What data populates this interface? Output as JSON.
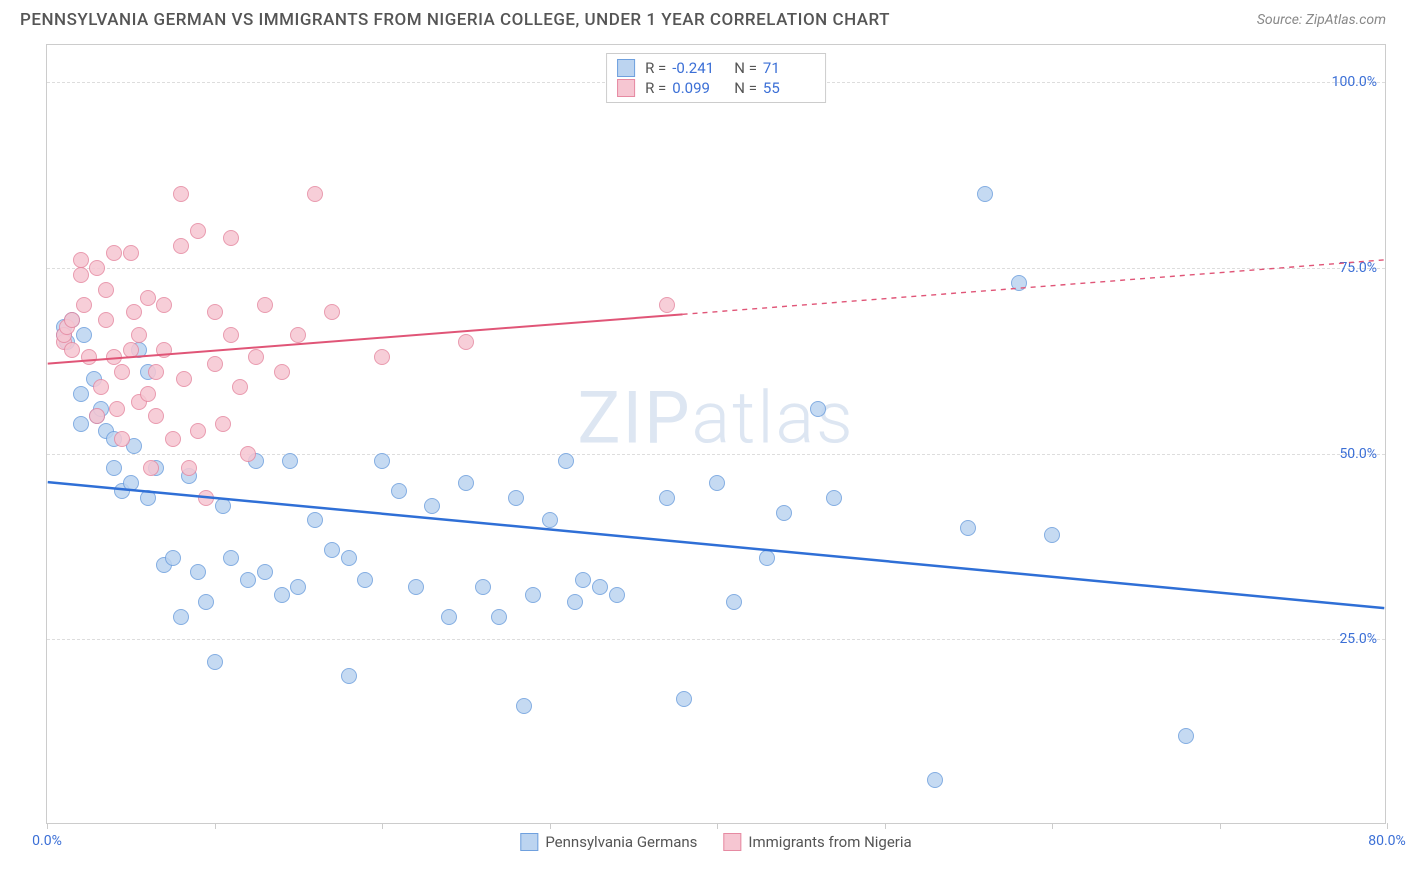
{
  "header": {
    "title": "PENNSYLVANIA GERMAN VS IMMIGRANTS FROM NIGERIA COLLEGE, UNDER 1 YEAR CORRELATION CHART",
    "source": "Source: ZipAtlas.com"
  },
  "chart": {
    "type": "scatter",
    "ylabel": "College, Under 1 year",
    "xlim": [
      0,
      80
    ],
    "ylim": [
      0,
      105
    ],
    "xticks": [
      0,
      10,
      20,
      30,
      40,
      50,
      60,
      70,
      80
    ],
    "xtick_labels_shown": {
      "0": "0.0%",
      "80": "80.0%"
    },
    "yticks": [
      25,
      50,
      75,
      100
    ],
    "ytick_labels": {
      "25": "25.0%",
      "50": "50.0%",
      "75": "75.0%",
      "100": "100.0%"
    },
    "background_color": "#ffffff",
    "grid_color": "#dddddd",
    "border_color": "#cccccc",
    "watermark": "ZIPatlas",
    "series": [
      {
        "id": "blue",
        "label": "Pennsylvania Germans",
        "fill": "#bcd4f0",
        "stroke": "#6fa0de",
        "R": "-0.241",
        "N": "71",
        "trend": {
          "x1": 0,
          "y1": 46,
          "x2": 80,
          "y2": 29,
          "solid_to_x": 80,
          "color": "#2f6fd6",
          "width": 2.5
        },
        "points": [
          [
            1,
            67
          ],
          [
            1,
            66
          ],
          [
            1.2,
            65
          ],
          [
            1.5,
            68
          ],
          [
            2,
            58
          ],
          [
            2,
            54
          ],
          [
            2.2,
            66
          ],
          [
            3,
            55
          ],
          [
            3.5,
            53
          ],
          [
            4,
            52
          ],
          [
            4,
            48
          ],
          [
            4.5,
            45
          ],
          [
            5,
            46
          ],
          [
            5.2,
            51
          ],
          [
            5.5,
            64
          ],
          [
            6,
            61
          ],
          [
            6,
            44
          ],
          [
            6.5,
            48
          ],
          [
            7,
            35
          ],
          [
            7.5,
            36
          ],
          [
            8,
            28
          ],
          [
            8.5,
            47
          ],
          [
            9,
            34
          ],
          [
            9.5,
            30
          ],
          [
            10,
            22
          ],
          [
            10.5,
            43
          ],
          [
            11,
            36
          ],
          [
            12,
            33
          ],
          [
            12.5,
            49
          ],
          [
            13,
            34
          ],
          [
            14,
            31
          ],
          [
            14.5,
            49
          ],
          [
            15,
            32
          ],
          [
            16,
            41
          ],
          [
            17,
            37
          ],
          [
            18,
            36
          ],
          [
            18,
            20
          ],
          [
            19,
            33
          ],
          [
            20,
            49
          ],
          [
            21,
            45
          ],
          [
            22,
            32
          ],
          [
            23,
            43
          ],
          [
            24,
            28
          ],
          [
            25,
            46
          ],
          [
            26,
            32
          ],
          [
            27,
            28
          ],
          [
            28,
            44
          ],
          [
            28.5,
            16
          ],
          [
            29,
            31
          ],
          [
            30,
            41
          ],
          [
            31,
            49
          ],
          [
            31.5,
            30
          ],
          [
            32,
            33
          ],
          [
            33,
            32
          ],
          [
            34,
            31
          ],
          [
            37,
            44
          ],
          [
            38,
            17
          ],
          [
            40,
            46
          ],
          [
            41,
            30
          ],
          [
            44,
            42
          ],
          [
            46,
            56
          ],
          [
            47,
            44
          ],
          [
            53,
            6
          ],
          [
            55,
            40
          ],
          [
            56,
            85
          ],
          [
            58,
            73
          ],
          [
            60,
            39
          ],
          [
            68,
            12
          ],
          [
            43,
            36
          ],
          [
            2.8,
            60
          ],
          [
            3.2,
            56
          ]
        ]
      },
      {
        "id": "pink",
        "label": "Immigrants from Nigeria",
        "fill": "#f6c6d2",
        "stroke": "#e68aa2",
        "R": "0.099",
        "N": "55",
        "trend": {
          "x1": 0,
          "y1": 62,
          "x2": 80,
          "y2": 76,
          "solid_to_x": 38,
          "color": "#e05577",
          "width": 2
        },
        "points": [
          [
            1,
            65
          ],
          [
            1,
            66
          ],
          [
            1.2,
            67
          ],
          [
            1.5,
            68
          ],
          [
            1.5,
            64
          ],
          [
            2,
            76
          ],
          [
            2,
            74
          ],
          [
            2.2,
            70
          ],
          [
            2.5,
            63
          ],
          [
            3,
            75
          ],
          [
            3,
            55
          ],
          [
            3.2,
            59
          ],
          [
            3.5,
            68
          ],
          [
            3.5,
            72
          ],
          [
            4,
            77
          ],
          [
            4,
            63
          ],
          [
            4.2,
            56
          ],
          [
            4.5,
            61
          ],
          [
            4.5,
            52
          ],
          [
            5,
            64
          ],
          [
            5,
            77
          ],
          [
            5.2,
            69
          ],
          [
            5.5,
            66
          ],
          [
            5.5,
            57
          ],
          [
            6,
            71
          ],
          [
            6,
            58
          ],
          [
            6.2,
            48
          ],
          [
            6.5,
            61
          ],
          [
            6.5,
            55
          ],
          [
            7,
            70
          ],
          [
            7,
            64
          ],
          [
            7.5,
            52
          ],
          [
            8,
            85
          ],
          [
            8,
            78
          ],
          [
            8.2,
            60
          ],
          [
            8.5,
            48
          ],
          [
            9,
            80
          ],
          [
            9,
            53
          ],
          [
            9.5,
            44
          ],
          [
            10,
            69
          ],
          [
            10,
            62
          ],
          [
            10.5,
            54
          ],
          [
            11,
            66
          ],
          [
            11,
            79
          ],
          [
            11.5,
            59
          ],
          [
            12,
            50
          ],
          [
            12.5,
            63
          ],
          [
            13,
            70
          ],
          [
            14,
            61
          ],
          [
            15,
            66
          ],
          [
            16,
            85
          ],
          [
            17,
            69
          ],
          [
            20,
            63
          ],
          [
            25,
            65
          ],
          [
            37,
            70
          ]
        ]
      }
    ],
    "legend_bottom": [
      {
        "label": "Pennsylvania Germans",
        "fill": "#bcd4f0",
        "stroke": "#6fa0de"
      },
      {
        "label": "Immigrants from Nigeria",
        "fill": "#f6c6d2",
        "stroke": "#e68aa2"
      }
    ],
    "stats_box": {
      "R_label": "R =",
      "N_label": "N ="
    }
  }
}
